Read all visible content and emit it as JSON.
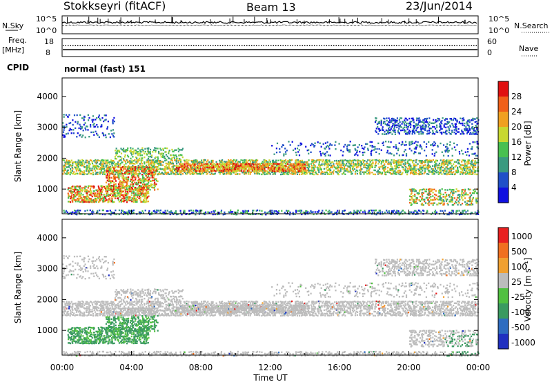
{
  "header": {
    "station": "Stokkseyri (fitACF)",
    "beam": "Beam 13",
    "date": "23/Jun/2014"
  },
  "mini_panels": {
    "nsky_label": "N.Sky",
    "nsky_ticks": [
      "10^5",
      "10^0"
    ],
    "nsearch_label": "N.Search",
    "nsearch_ticks": [
      "10^5",
      "10^0"
    ],
    "freq_label_1": "Freq.",
    "freq_label_2": "[MHz]",
    "freq_ticks": [
      "18",
      "8"
    ],
    "nave_label": "Nave",
    "nave_ticks": [
      "60",
      "0"
    ],
    "cpid_label": "CPID",
    "cpid_value": "normal (fast) 151"
  },
  "chart_data": [
    {
      "type": "heatmap",
      "name": "power",
      "ylabel": "Slant Range [km]",
      "xlabel": "",
      "ylim": [
        200,
        4600
      ],
      "yticks": [
        "1000",
        "2000",
        "3000",
        "4000"
      ],
      "xlim": [
        0,
        24
      ],
      "colorbar_label": "Power [dB]",
      "colorbar_ticks": [
        "4",
        "8",
        "12",
        "16",
        "20",
        "24",
        "28"
      ],
      "colors": [
        "#1010e0",
        "#2050c8",
        "#3a9a80",
        "#48c050",
        "#c8d830",
        "#f0a020",
        "#f06018",
        "#e01010"
      ]
    },
    {
      "type": "heatmap",
      "name": "velocity",
      "ylabel": "Slant Range [km]",
      "xlabel": "Time UT",
      "ylim": [
        200,
        4600
      ],
      "yticks": [
        "1000",
        "2000",
        "3000",
        "4000"
      ],
      "xlim": [
        0,
        24
      ],
      "xticks": [
        "00:00",
        "04:00",
        "08:00",
        "12:00",
        "16:00",
        "20:00",
        "00:00"
      ],
      "colorbar_label": "Velocity [m s⁻¹]",
      "colorbar_ticks": [
        "1000",
        "500",
        "100",
        "25",
        "-25",
        "-100",
        "-500",
        "-1000"
      ],
      "colors": [
        "#2030c0",
        "#2e6cc0",
        "#3a9a60",
        "#50c040",
        "#bcbcbc",
        "#f0a030",
        "#f07020",
        "#e82020"
      ]
    }
  ]
}
